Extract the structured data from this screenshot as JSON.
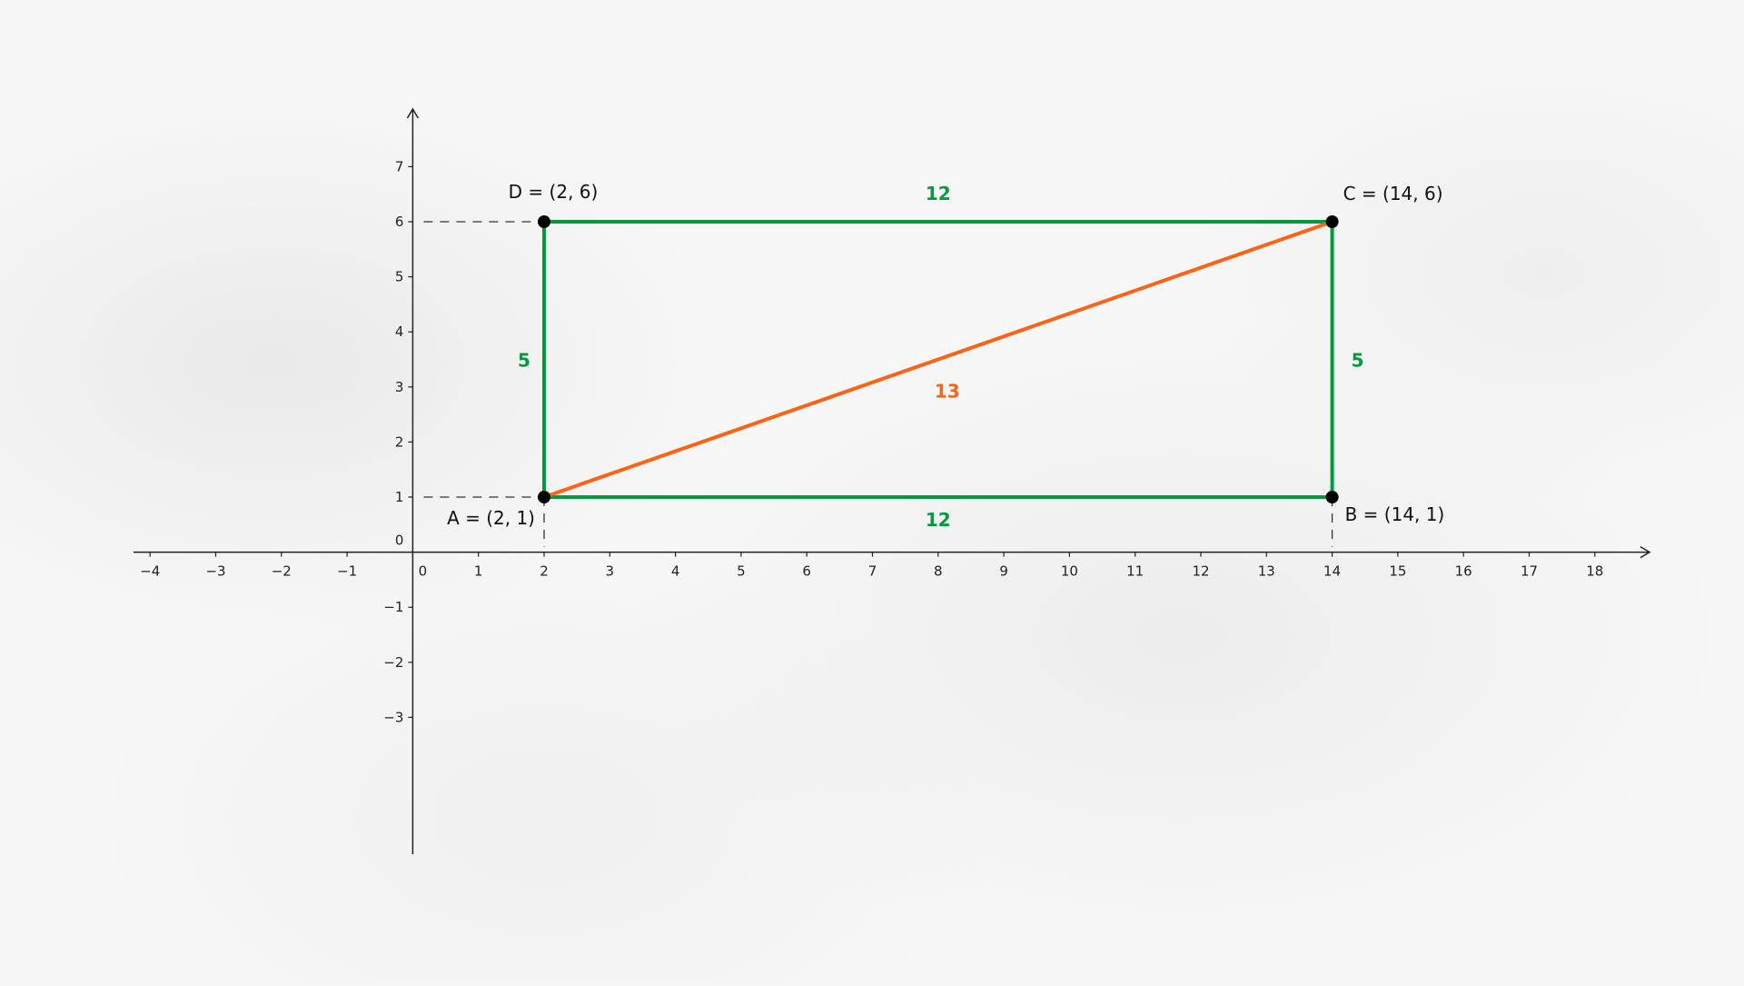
{
  "chart_data": {
    "type": "geometry",
    "xlim": [
      -4,
      18
    ],
    "ylim": [
      -3,
      7
    ],
    "x_ticks": [
      "−4",
      "−3",
      "−2",
      "−1",
      "0",
      "1",
      "2",
      "3",
      "4",
      "5",
      "6",
      "7",
      "8",
      "9",
      "10",
      "11",
      "12",
      "13",
      "14",
      "15",
      "16",
      "17",
      "18"
    ],
    "y_ticks": [
      "−3",
      "−2",
      "−1",
      "0",
      "1",
      "2",
      "3",
      "4",
      "5",
      "6",
      "7"
    ],
    "points": [
      {
        "name": "A",
        "x": 2,
        "y": 1,
        "label": "A = (2, 1)"
      },
      {
        "name": "B",
        "x": 14,
        "y": 1,
        "label": "B = (14, 1)"
      },
      {
        "name": "C",
        "x": 14,
        "y": 6,
        "label": "C = (14, 6)"
      },
      {
        "name": "D",
        "x": 2,
        "y": 6,
        "label": "D = (2, 6)"
      }
    ],
    "segments": [
      {
        "from": "A",
        "to": "B",
        "length_label": "12",
        "color": "#009a3e"
      },
      {
        "from": "B",
        "to": "C",
        "length_label": "5",
        "color": "#009a3e"
      },
      {
        "from": "C",
        "to": "D",
        "length_label": "12",
        "color": "#009a3e"
      },
      {
        "from": "D",
        "to": "A",
        "length_label": "5",
        "color": "#009a3e"
      },
      {
        "from": "A",
        "to": "C",
        "length_label": "13",
        "color": "#ff6315"
      }
    ],
    "guide_lines": "dashed projections from A, B, D to axes"
  }
}
